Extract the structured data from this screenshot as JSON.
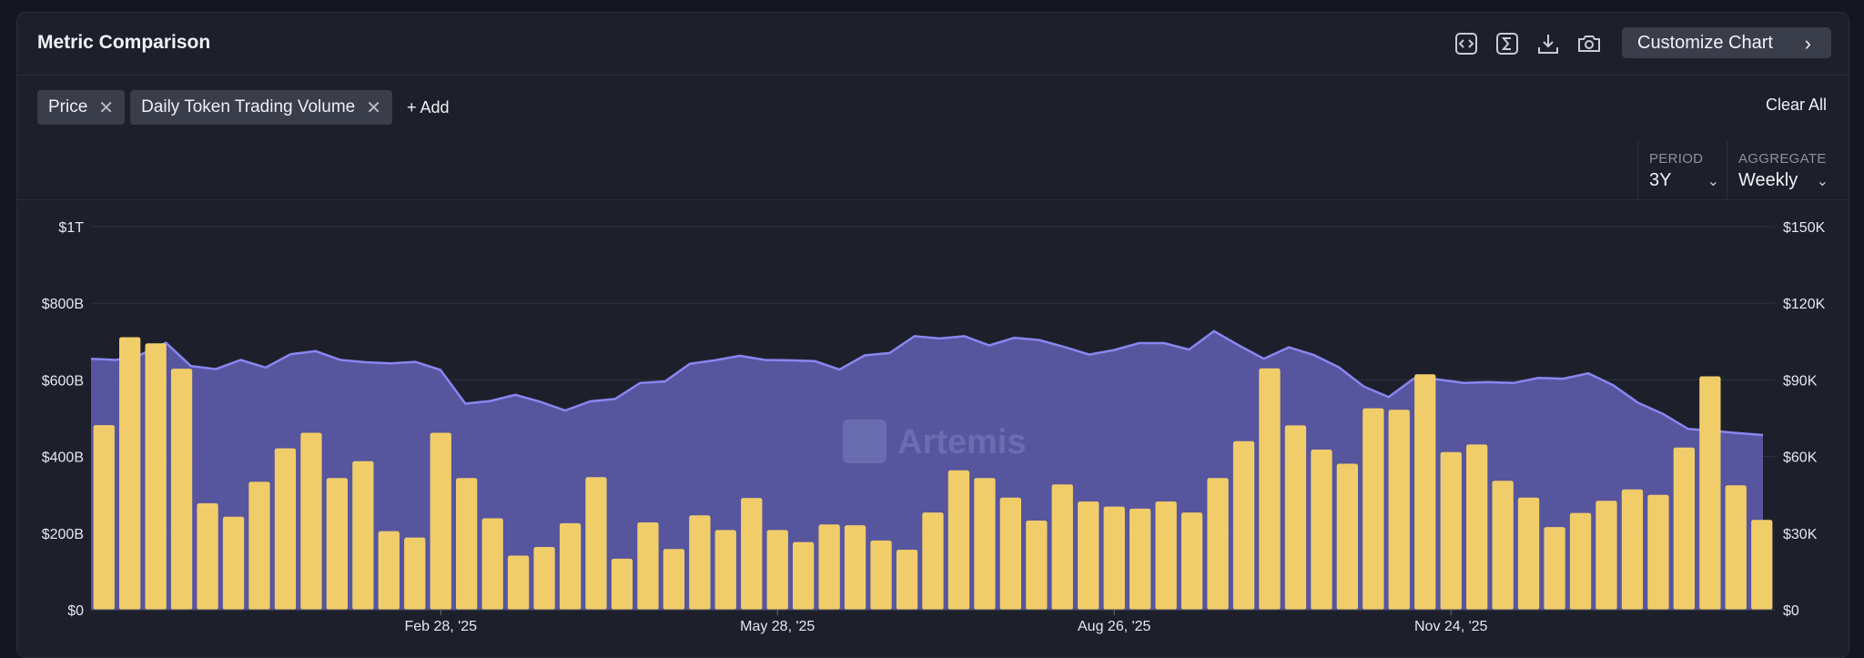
{
  "header": {
    "title": "Metric Comparison",
    "customize_label": "Customize Chart"
  },
  "toolbar_icons": [
    "code-icon",
    "sigma-icon",
    "download-icon",
    "camera-icon"
  ],
  "metrics": [
    {
      "label": "Price"
    },
    {
      "label": "Daily Token Trading Volume"
    }
  ],
  "add_label": "+ Add",
  "clear_all_label": "Clear All",
  "period": {
    "label": "PERIOD",
    "value": "3Y"
  },
  "aggregate": {
    "label": "AGGREGATE",
    "value": "Weekly"
  },
  "watermark": "Artemis",
  "colors": {
    "price_area": "#5b5aa8",
    "price_line": "#8a86f0",
    "volume_bar": "#f1cd6a",
    "background": "#1d202b"
  },
  "chart_data": {
    "type": "bar",
    "left_axis": {
      "ticks": [
        "$0",
        "$200B",
        "$400B",
        "$600B",
        "$800B",
        "$1T"
      ],
      "range": [
        0,
        1000
      ]
    },
    "right_axis": {
      "ticks": [
        "$0",
        "$30K",
        "$60K",
        "$90K",
        "$120K",
        "$150K"
      ],
      "range": [
        0,
        150
      ]
    },
    "x_ticks": [
      {
        "label": "Feb 28, '25",
        "index": 13.5
      },
      {
        "label": "May 28, '25",
        "index": 26.5
      },
      {
        "label": "Aug 26, '25",
        "index": 39.5
      },
      {
        "label": "Nov 24, '25",
        "index": 52.5
      }
    ],
    "grid": true,
    "series": [
      {
        "name": "Price",
        "kind": "area",
        "axis": "left",
        "values": [
          655,
          652,
          666,
          697,
          636,
          628,
          652,
          632,
          667,
          675,
          652,
          646,
          643,
          647,
          626,
          538,
          545,
          561,
          543,
          520,
          544,
          550,
          592,
          596,
          642,
          651,
          663,
          652,
          651,
          649,
          627,
          664,
          670,
          714,
          708,
          714,
          690,
          710,
          704,
          686,
          666,
          678,
          696,
          696,
          679,
          727,
          690,
          655,
          685,
          665,
          633,
          583,
          555,
          603,
          601,
          592,
          594,
          592,
          605,
          603,
          617,
          586,
          540,
          511,
          472,
          467,
          461,
          456
        ]
      },
      {
        "name": "Daily Token Trading Volume",
        "kind": "bar",
        "axis": "right",
        "values": [
          72.3,
          106.7,
          104.3,
          94.4,
          41.7,
          36.4,
          50.1,
          63.2,
          69.3,
          51.6,
          58.2,
          30.8,
          28.3,
          69.3,
          51.6,
          35.8,
          21.2,
          24.6,
          33.9,
          51.9,
          20.0,
          34.2,
          23.8,
          37.0,
          31.2,
          43.8,
          31.2,
          26.5,
          33.4,
          33.1,
          27.1,
          23.5,
          38.1,
          54.6,
          51.6,
          43.9,
          34.9,
          49.1,
          42.4,
          40.4,
          39.6,
          42.4,
          38.1,
          51.6,
          66.0,
          94.5,
          72.2,
          62.7,
          57.2,
          78.9,
          78.3,
          92.2,
          61.7,
          64.7,
          50.5,
          43.9,
          32.4,
          37.9,
          42.7,
          47.1,
          45.0,
          63.5,
          91.4,
          48.7,
          35.2
        ]
      }
    ]
  }
}
